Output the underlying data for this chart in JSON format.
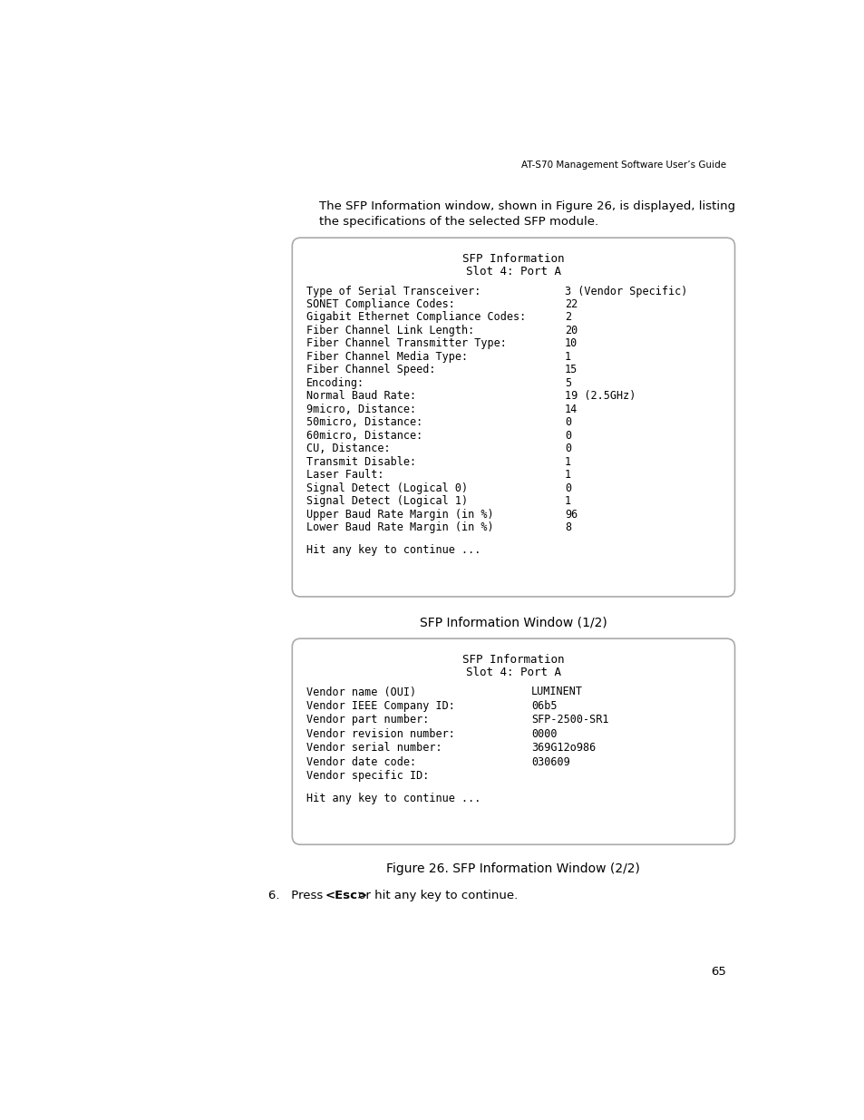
{
  "page_header": "AT-S70 Management Software User’s Guide",
  "intro_text_line1": "The SFP Information window, shown in Figure 26, is displayed, listing",
  "intro_text_line2": "the specifications of the selected SFP module.",
  "box1_title1": "SFP Information",
  "box1_title2": "Slot 4: Port A",
  "box1_rows": [
    [
      "Type of Serial Transceiver:",
      "3 (Vendor Specific)"
    ],
    [
      "SONET Compliance Codes:",
      "22"
    ],
    [
      "Gigabit Ethernet Compliance Codes:",
      "2"
    ],
    [
      "Fiber Channel Link Length:",
      "20"
    ],
    [
      "Fiber Channel Transmitter Type:",
      "10"
    ],
    [
      "Fiber Channel Media Type:",
      "1"
    ],
    [
      "Fiber Channel Speed:",
      "15"
    ],
    [
      "Encoding:",
      "5"
    ],
    [
      "Normal Baud Rate:",
      "19 (2.5GHz)"
    ],
    [
      "9micro, Distance:",
      "14"
    ],
    [
      "50micro, Distance:",
      "0"
    ],
    [
      "60micro, Distance:",
      "0"
    ],
    [
      "CU, Distance:",
      "0"
    ],
    [
      "Transmit Disable:",
      "1"
    ],
    [
      "Laser Fault:",
      "1"
    ],
    [
      "Signal Detect (Logical 0)",
      "0"
    ],
    [
      "Signal Detect (Logical 1)",
      "1"
    ],
    [
      "Upper Baud Rate Margin (in %)",
      "96"
    ],
    [
      "Lower Baud Rate Margin (in %)",
      "8"
    ]
  ],
  "box1_footer": "Hit any key to continue ...",
  "box1_caption": "SFP Information Window (1/2)",
  "box2_title1": "SFP Information",
  "box2_title2": "Slot 4: Port A",
  "box2_rows": [
    [
      "Vendor name (OUI)",
      "LUMINENT"
    ],
    [
      "Vendor IEEE Company ID:",
      "06b5"
    ],
    [
      "Vendor part number:",
      "SFP-2500-SR1"
    ],
    [
      "Vendor revision number:",
      "0000"
    ],
    [
      "Vendor serial number:",
      "369G12o986"
    ],
    [
      "Vendor date code:",
      "030609"
    ],
    [
      "Vendor specific ID:",
      ""
    ]
  ],
  "box2_footer": "Hit any key to continue ...",
  "box2_caption": "Figure 26. SFP Information Window (2/2)",
  "page_number": "65",
  "bg_color": "#ffffff",
  "box_bg": "#ffffff",
  "box_border": "#aaaaaa",
  "text_color": "#000000",
  "mono_font": "monospace",
  "sans_font": "DejaVu Sans"
}
